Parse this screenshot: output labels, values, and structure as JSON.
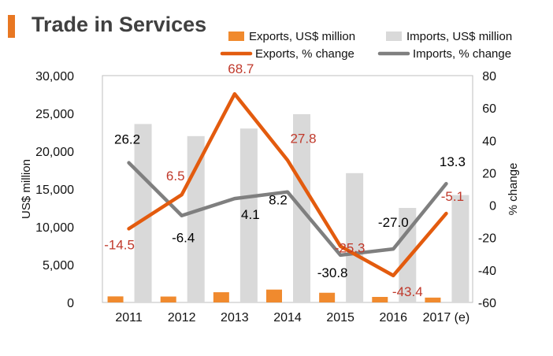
{
  "title": "Trade in Services",
  "colors": {
    "title_accent": "#e87722",
    "exports_bar": "#f08a2e",
    "imports_bar": "#d9d9d9",
    "exports_line": "#e35b0e",
    "imports_line": "#7f7f7f",
    "exports_label": "#c0392b",
    "imports_label": "#000000"
  },
  "chart_data": {
    "type": "bar+line",
    "title": "Trade in Services",
    "categories": [
      "2011",
      "2012",
      "2013",
      "2014",
      "2015",
      "2016",
      "2017 (e)"
    ],
    "y_left": {
      "label": "US$ million",
      "ylim": [
        0,
        30000
      ],
      "ticks": [
        "0",
        "5,000",
        "10,000",
        "15,000",
        "20,000",
        "25,000",
        "30,000"
      ],
      "tick_values": [
        0,
        5000,
        10000,
        15000,
        20000,
        25000,
        30000
      ]
    },
    "y_right": {
      "label": "% change",
      "ylim": [
        -60,
        80
      ],
      "ticks": [
        "-60",
        "-40",
        "-20",
        "0",
        "20",
        "40",
        "60",
        "80"
      ],
      "tick_values": [
        -60,
        -40,
        -20,
        0,
        20,
        40,
        60,
        80
      ]
    },
    "series": [
      {
        "name": "Exports, US$ million",
        "type": "bar",
        "axis": "left",
        "values": [
          800,
          780,
          1350,
          1700,
          1280,
          730,
          640
        ]
      },
      {
        "name": "Imports, US$ million",
        "type": "bar",
        "axis": "left",
        "values": [
          23600,
          22000,
          23000,
          24900,
          17100,
          12500,
          14200
        ]
      },
      {
        "name": "Exports, % change",
        "type": "line",
        "axis": "right",
        "values": [
          -14.5,
          6.5,
          68.7,
          27.8,
          -25.3,
          -43.4,
          -5.1
        ],
        "labels": [
          "-14.5",
          "6.5",
          "68.7",
          "27.8",
          "-25.3",
          "-43.4",
          "-5.1"
        ]
      },
      {
        "name": "Imports, % change",
        "type": "line",
        "axis": "right",
        "values": [
          26.2,
          -6.4,
          4.1,
          8.2,
          -30.8,
          -27.0,
          13.3
        ],
        "labels": [
          "26.2",
          "-6.4",
          "4.1",
          "8.2",
          "-30.8",
          "-27.0",
          "13.3"
        ]
      }
    ],
    "legend_position": "top-right"
  }
}
